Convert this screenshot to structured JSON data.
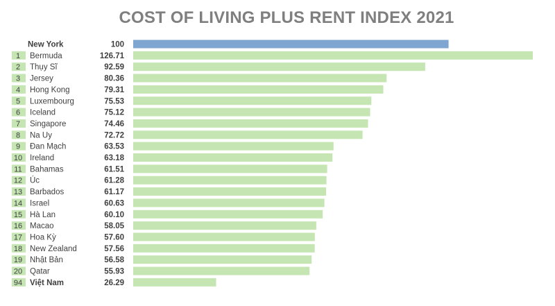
{
  "chart_data": {
    "type": "bar",
    "title": "COST OF LIVING PLUS RENT INDEX 2021",
    "xlim": [
      0,
      126.71
    ],
    "colors": {
      "reference_bar": "#7ea6d0",
      "bar": "#c5e6b3",
      "rank_box": "#c5e6b3"
    },
    "rows": [
      {
        "rank": "",
        "name": "New York",
        "value": 100,
        "value_label": "100",
        "highlight": true,
        "bold_name": true
      },
      {
        "rank": "1",
        "name": "Bermuda",
        "value": 126.71,
        "value_label": "126.71"
      },
      {
        "rank": "2",
        "name": "Thụy Sĩ",
        "value": 92.59,
        "value_label": "92.59"
      },
      {
        "rank": "3",
        "name": "Jersey",
        "value": 80.36,
        "value_label": "80.36"
      },
      {
        "rank": "4",
        "name": "Hong Kong",
        "value": 79.31,
        "value_label": "79.31"
      },
      {
        "rank": "5",
        "name": "Luxembourg",
        "value": 75.53,
        "value_label": "75.53"
      },
      {
        "rank": "6",
        "name": "Iceland",
        "value": 75.12,
        "value_label": "75.12"
      },
      {
        "rank": "7",
        "name": "Singapore",
        "value": 74.46,
        "value_label": "74.46"
      },
      {
        "rank": "8",
        "name": "Na Uy",
        "value": 72.72,
        "value_label": "72.72"
      },
      {
        "rank": "9",
        "name": "Đan Mạch",
        "value": 63.53,
        "value_label": "63.53"
      },
      {
        "rank": "10",
        "name": "Ireland",
        "value": 63.18,
        "value_label": "63.18"
      },
      {
        "rank": "11",
        "name": "Bahamas",
        "value": 61.51,
        "value_label": "61.51"
      },
      {
        "rank": "12",
        "name": "Úc",
        "value": 61.28,
        "value_label": "61.28"
      },
      {
        "rank": "13",
        "name": "Barbados",
        "value": 61.17,
        "value_label": "61.17"
      },
      {
        "rank": "14",
        "name": "Israel",
        "value": 60.63,
        "value_label": "60.63"
      },
      {
        "rank": "15",
        "name": "Hà Lan",
        "value": 60.1,
        "value_label": "60.10"
      },
      {
        "rank": "16",
        "name": "Macao",
        "value": 58.05,
        "value_label": "58.05"
      },
      {
        "rank": "17",
        "name": "Hoa Kỳ",
        "value": 57.6,
        "value_label": "57.60"
      },
      {
        "rank": "18",
        "name": "New Zealand",
        "value": 57.56,
        "value_label": "57.56"
      },
      {
        "rank": "19",
        "name": "Nhật Bản",
        "value": 56.58,
        "value_label": "56.58"
      },
      {
        "rank": "20",
        "name": "Qatar",
        "value": 55.93,
        "value_label": "55.93"
      },
      {
        "rank": "94",
        "name": "Việt Nam",
        "value": 26.29,
        "value_label": "26.29",
        "bold_name": true
      }
    ]
  }
}
